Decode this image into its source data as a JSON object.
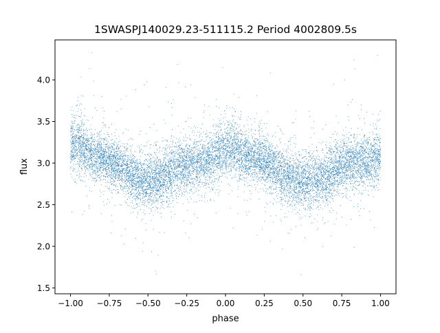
{
  "chart_data": {
    "type": "scatter",
    "title": "1SWASPJ140029.23-511115.2 Period 4002809.5s",
    "xlabel": "phase",
    "ylabel": "flux",
    "xlim": [
      -1.1,
      1.1
    ],
    "ylim": [
      1.43,
      4.48
    ],
    "xticks": [
      "−1.00",
      "−0.75",
      "−0.50",
      "−0.25",
      "0.00",
      "0.25",
      "0.50",
      "0.75",
      "1.00"
    ],
    "xtick_values": [
      -1.0,
      -0.75,
      -0.5,
      -0.25,
      0.0,
      0.25,
      0.5,
      0.75,
      1.0
    ],
    "yticks": [
      "1.5",
      "2.0",
      "2.5",
      "3.0",
      "3.5",
      "4.0"
    ],
    "ytick_values": [
      1.5,
      2.0,
      2.5,
      3.0,
      3.5,
      4.0
    ],
    "grid": false,
    "point_color": "#1f77b4",
    "point_count": 12000,
    "x_range": [
      -1.0,
      1.0
    ],
    "y_range": [
      1.55,
      4.35
    ],
    "profile": {
      "phase": [
        -1.0,
        -0.95,
        -0.9,
        -0.85,
        -0.8,
        -0.75,
        -0.7,
        -0.65,
        -0.6,
        -0.55,
        -0.5,
        -0.45,
        -0.4,
        -0.35,
        -0.3,
        -0.25,
        -0.2,
        -0.15,
        -0.1,
        -0.05,
        0.0,
        0.05,
        0.1,
        0.15,
        0.2,
        0.25,
        0.3,
        0.35,
        0.4,
        0.45,
        0.5,
        0.55,
        0.6,
        0.65,
        0.7,
        0.75,
        0.8,
        0.85,
        0.9,
        0.95,
        1.0
      ],
      "flux_median": [
        3.2,
        3.25,
        3.15,
        3.08,
        3.05,
        3.02,
        2.97,
        2.93,
        2.85,
        2.78,
        2.78,
        2.8,
        2.83,
        2.9,
        2.96,
        3.0,
        2.98,
        3.0,
        3.05,
        3.1,
        3.15,
        3.2,
        3.12,
        3.08,
        3.05,
        3.02,
        2.95,
        2.9,
        2.83,
        2.8,
        2.78,
        2.78,
        2.8,
        2.85,
        2.92,
        2.97,
        3.0,
        3.02,
        3.0,
        3.02,
        3.1
      ],
      "flux_spread": [
        0.16,
        0.18,
        0.16,
        0.15,
        0.15,
        0.16,
        0.15,
        0.16,
        0.16,
        0.17,
        0.17,
        0.17,
        0.16,
        0.17,
        0.16,
        0.16,
        0.16,
        0.16,
        0.16,
        0.17,
        0.17,
        0.18,
        0.16,
        0.15,
        0.15,
        0.16,
        0.15,
        0.16,
        0.16,
        0.17,
        0.17,
        0.17,
        0.16,
        0.17,
        0.16,
        0.16,
        0.16,
        0.16,
        0.16,
        0.17,
        0.17
      ]
    }
  }
}
